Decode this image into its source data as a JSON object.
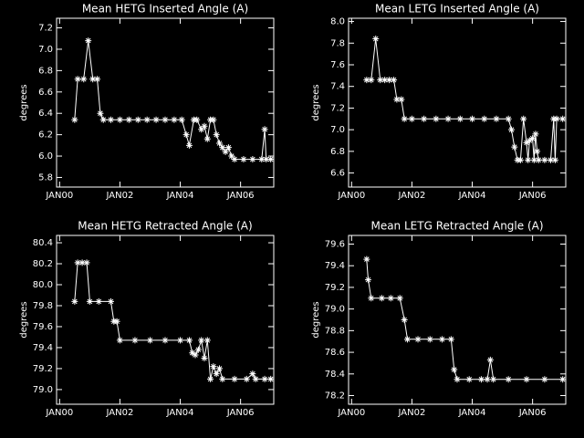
{
  "chart_data": [
    {
      "type": "line",
      "title": "Mean HETG Inserted Angle (A)",
      "ylabel": "degrees",
      "color": "#ffffff",
      "x": [
        2000.5,
        2000.6,
        2000.8,
        2000.95,
        2001.1,
        2001.25,
        2001.35,
        2001.45,
        2001.7,
        2002.0,
        2002.3,
        2002.6,
        2002.9,
        2003.2,
        2003.5,
        2003.8,
        2004.05,
        2004.2,
        2004.3,
        2004.45,
        2004.55,
        2004.7,
        2004.8,
        2004.9,
        2005.0,
        2005.1,
        2005.2,
        2005.3,
        2005.4,
        2005.5,
        2005.6,
        2005.7,
        2005.8,
        2006.1,
        2006.4,
        2006.7,
        2006.8,
        2006.85,
        2007.0
      ],
      "values": [
        6.34,
        6.72,
        6.72,
        7.08,
        6.72,
        6.72,
        6.4,
        6.34,
        6.34,
        6.34,
        6.34,
        6.34,
        6.34,
        6.34,
        6.34,
        6.34,
        6.34,
        6.2,
        6.1,
        6.34,
        6.34,
        6.25,
        6.28,
        6.16,
        6.34,
        6.34,
        6.2,
        6.12,
        6.08,
        6.04,
        6.08,
        6.0,
        5.97,
        5.97,
        5.97,
        5.97,
        6.25,
        5.97,
        5.97
      ],
      "xlim": [
        1999.9,
        2007.1
      ],
      "xticks": [
        {
          "value": 2000,
          "label": "JAN00"
        },
        {
          "value": 2002,
          "label": "JAN02"
        },
        {
          "value": 2004,
          "label": "JAN04"
        },
        {
          "value": 2006,
          "label": "JAN06"
        }
      ],
      "ylim": [
        5.71,
        7.29
      ],
      "yticks": [
        5.8,
        {
          "value": 6,
          "label": "6.0"
        },
        6.2,
        6.4,
        6.6,
        6.8,
        {
          "value": 7,
          "label": "7.0"
        },
        7.2
      ]
    },
    {
      "type": "line",
      "title": "Mean LETG Inserted Angle (A)",
      "ylabel": "degrees",
      "color": "#ffffff",
      "x": [
        2000.5,
        2000.65,
        2000.8,
        2000.95,
        2001.1,
        2001.25,
        2001.4,
        2001.5,
        2001.65,
        2001.75,
        2002.0,
        2002.4,
        2002.8,
        2003.2,
        2003.6,
        2004.0,
        2004.4,
        2004.8,
        2005.2,
        2005.3,
        2005.4,
        2005.5,
        2005.6,
        2005.7,
        2005.8,
        2005.85,
        2005.9,
        2006.0,
        2006.05,
        2006.1,
        2006.15,
        2006.2,
        2006.4,
        2006.6,
        2006.7,
        2006.75,
        2006.8,
        2007.0
      ],
      "values": [
        7.46,
        7.46,
        7.84,
        7.46,
        7.46,
        7.46,
        7.46,
        7.28,
        7.28,
        7.1,
        7.1,
        7.1,
        7.1,
        7.1,
        7.1,
        7.1,
        7.1,
        7.1,
        7.1,
        7.0,
        6.84,
        6.72,
        6.72,
        7.1,
        6.88,
        6.72,
        6.9,
        6.92,
        6.72,
        6.96,
        6.8,
        6.72,
        6.72,
        6.72,
        7.1,
        6.72,
        7.1,
        7.1
      ],
      "xlim": [
        1999.9,
        2007.1
      ],
      "xticks": [
        {
          "value": 2000,
          "label": "JAN00"
        },
        {
          "value": 2002,
          "label": "JAN02"
        },
        {
          "value": 2004,
          "label": "JAN04"
        },
        {
          "value": 2006,
          "label": "JAN06"
        }
      ],
      "ylim": [
        6.47,
        8.03
      ],
      "yticks": [
        6.6,
        6.8,
        {
          "value": 7,
          "label": "7.0"
        },
        7.2,
        7.4,
        7.6,
        7.8,
        {
          "value": 8,
          "label": "8.0"
        }
      ]
    },
    {
      "type": "line",
      "title": "Mean HETG Retracted Angle (A)",
      "ylabel": "degrees",
      "color": "#ffffff",
      "x": [
        2000.5,
        2000.6,
        2000.75,
        2000.9,
        2001.0,
        2001.3,
        2001.7,
        2001.8,
        2001.9,
        2002.0,
        2002.5,
        2003.0,
        2003.5,
        2004.0,
        2004.3,
        2004.4,
        2004.5,
        2004.6,
        2004.7,
        2004.8,
        2004.9,
        2005.0,
        2005.1,
        2005.2,
        2005.3,
        2005.4,
        2005.8,
        2006.2,
        2006.4,
        2006.5,
        2006.8,
        2007.0
      ],
      "values": [
        79.84,
        80.21,
        80.21,
        80.21,
        79.84,
        79.84,
        79.84,
        79.65,
        79.65,
        79.47,
        79.47,
        79.47,
        79.47,
        79.47,
        79.47,
        79.35,
        79.33,
        79.38,
        79.47,
        79.3,
        79.47,
        79.1,
        79.22,
        79.15,
        79.2,
        79.1,
        79.1,
        79.1,
        79.15,
        79.1,
        79.1,
        79.1
      ],
      "xlim": [
        1999.9,
        2007.1
      ],
      "xticks": [
        {
          "value": 2000,
          "label": "JAN00"
        },
        {
          "value": 2002,
          "label": "JAN02"
        },
        {
          "value": 2004,
          "label": "JAN04"
        },
        {
          "value": 2006,
          "label": "JAN06"
        }
      ],
      "ylim": [
        78.86,
        80.47
      ],
      "yticks": [
        {
          "value": 79,
          "label": "79.0"
        },
        79.2,
        79.4,
        79.6,
        79.8,
        {
          "value": 80,
          "label": "80.0"
        },
        80.2,
        80.4
      ]
    },
    {
      "type": "line",
      "title": "Mean LETG Retracted Angle (A)",
      "ylabel": "degrees",
      "color": "#ffffff",
      "x": [
        2000.5,
        2000.55,
        2000.65,
        2001.0,
        2001.3,
        2001.6,
        2001.75,
        2001.85,
        2002.2,
        2002.6,
        2003.0,
        2003.3,
        2003.4,
        2003.5,
        2003.9,
        2004.3,
        2004.5,
        2004.6,
        2004.7,
        2005.2,
        2005.8,
        2006.4,
        2007.0
      ],
      "values": [
        79.46,
        79.27,
        79.1,
        79.1,
        79.1,
        79.1,
        78.9,
        78.72,
        78.72,
        78.72,
        78.72,
        78.72,
        78.44,
        78.35,
        78.35,
        78.35,
        78.35,
        78.53,
        78.35,
        78.35,
        78.35,
        78.35,
        78.35
      ],
      "xlim": [
        1999.9,
        2007.1
      ],
      "xticks": [
        {
          "value": 2000,
          "label": "JAN00"
        },
        {
          "value": 2002,
          "label": "JAN02"
        },
        {
          "value": 2004,
          "label": "JAN04"
        },
        {
          "value": 2006,
          "label": "JAN06"
        }
      ],
      "ylim": [
        78.12,
        79.68
      ],
      "yticks": [
        78.2,
        78.4,
        78.6,
        78.8,
        {
          "value": 79,
          "label": "79.0"
        },
        79.2,
        79.4,
        79.6
      ]
    }
  ]
}
